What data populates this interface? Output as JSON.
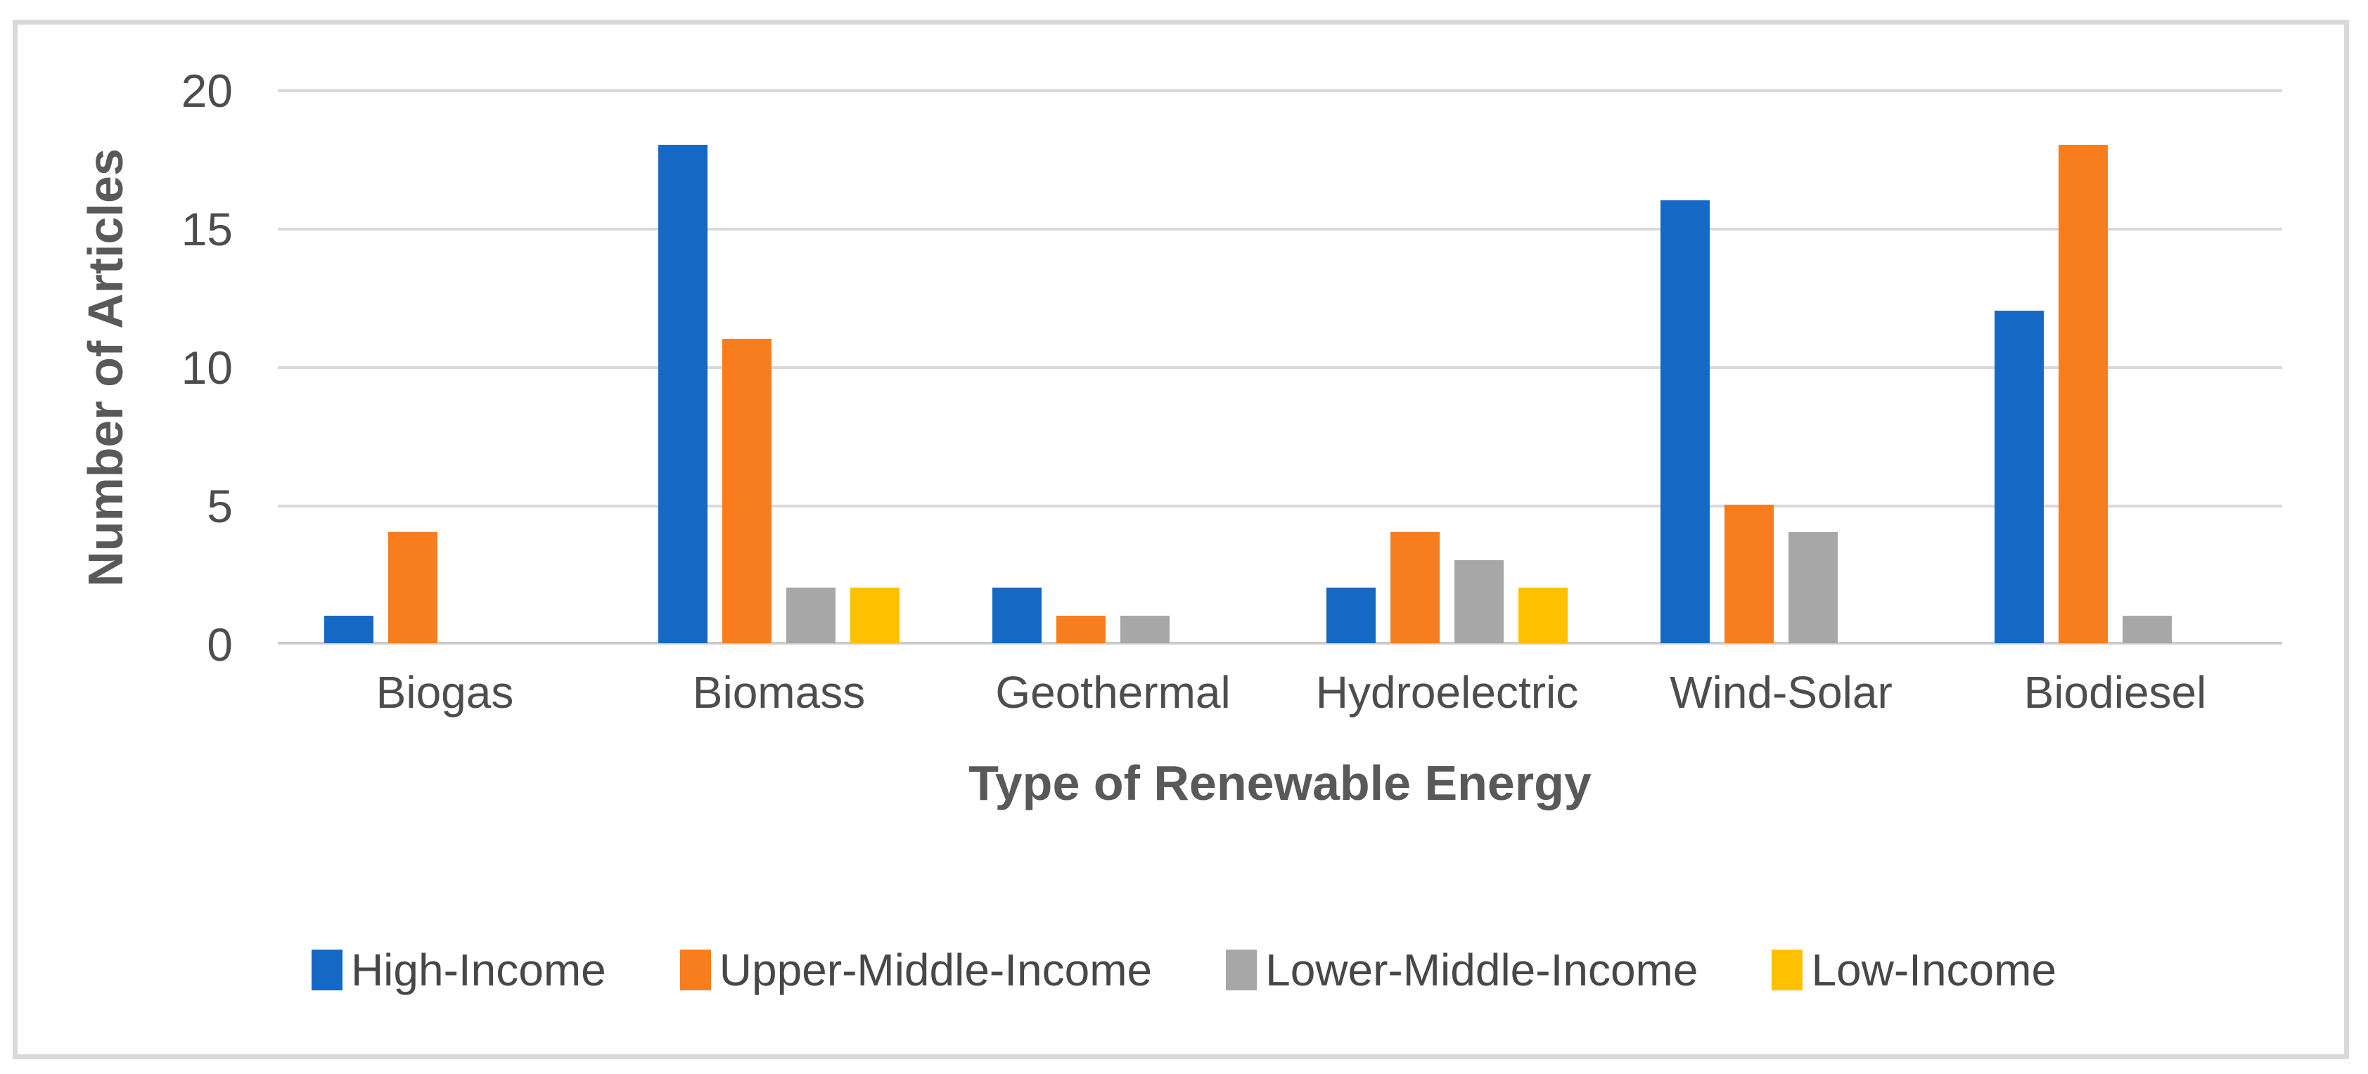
{
  "chart_data": {
    "type": "bar",
    "title": "",
    "categories": [
      "Biogas",
      "Biomass",
      "Geothermal",
      "Hydroelectric",
      "Wind-Solar",
      "Biodiesel"
    ],
    "series": [
      {
        "name": "High-Income",
        "color": "#1569C4",
        "values": [
          1,
          18,
          2,
          2,
          16,
          12
        ]
      },
      {
        "name": "Upper-Middle-Income",
        "color": "#F87D1E",
        "values": [
          4,
          11,
          1,
          4,
          5,
          18
        ]
      },
      {
        "name": "Lower-Middle-Income",
        "color": "#A7A7A7",
        "values": [
          0,
          2,
          1,
          3,
          4,
          1
        ]
      },
      {
        "name": "Low-Income",
        "color": "#FFC000",
        "values": [
          0,
          2,
          0,
          2,
          0,
          0
        ]
      }
    ],
    "xlabel": "Type of Renewable Energy",
    "ylabel": "Number of Articles",
    "ylim": [
      0,
      20
    ],
    "yticks": [
      0,
      5,
      10,
      15,
      20
    ],
    "grid": true,
    "legend_position": "bottom"
  }
}
